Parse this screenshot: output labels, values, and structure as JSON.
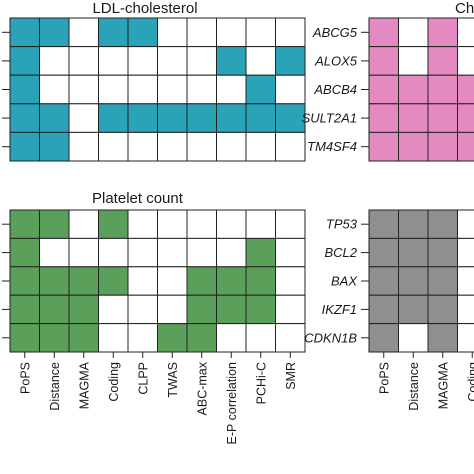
{
  "chart_data": [
    {
      "type": "heatmap",
      "title": "LDL-cholesterol",
      "color": "#2aa3b8",
      "rows": [
        "",
        "",
        "",
        "",
        ""
      ],
      "columns": [
        "PoPS",
        "Distance",
        "MAGMA",
        "Coding",
        "CLPP",
        "TWAS",
        "ABC-max",
        "E-P correlation",
        "PCHi-C",
        "SMR"
      ],
      "matrix": [
        [
          1,
          1,
          0,
          1,
          1,
          0,
          0,
          0,
          0,
          0
        ],
        [
          1,
          0,
          0,
          0,
          0,
          0,
          0,
          1,
          0,
          1
        ],
        [
          1,
          0,
          0,
          0,
          0,
          0,
          0,
          0,
          1,
          0
        ],
        [
          1,
          1,
          0,
          1,
          1,
          1,
          1,
          1,
          1,
          1
        ],
        [
          1,
          1,
          0,
          0,
          0,
          0,
          0,
          0,
          0,
          0
        ]
      ]
    },
    {
      "type": "heatmap",
      "title": "Ch",
      "color": "#e58ac0",
      "rows": [
        "ABCG5",
        "ALOX5",
        "ABCB4",
        "SULT2A1",
        "TM4SF4"
      ],
      "columns": [
        "",
        "",
        "",
        ""
      ],
      "matrix": [
        [
          1,
          0,
          1,
          0
        ],
        [
          1,
          0,
          1,
          0
        ],
        [
          1,
          1,
          1,
          1
        ],
        [
          1,
          1,
          1,
          1
        ],
        [
          1,
          1,
          1,
          1
        ]
      ]
    },
    {
      "type": "heatmap",
      "title": "Platelet count",
      "color": "#5aa05a",
      "rows": [
        "",
        "",
        "",
        "",
        ""
      ],
      "columns": [
        "PoPS",
        "Distance",
        "MAGMA",
        "Coding",
        "CLPP",
        "TWAS",
        "ABC-max",
        "E-P correlation",
        "PCHi-C",
        "SMR"
      ],
      "matrix": [
        [
          1,
          1,
          0,
          1,
          0,
          0,
          0,
          0,
          0,
          0
        ],
        [
          1,
          0,
          0,
          0,
          0,
          0,
          0,
          0,
          1,
          0
        ],
        [
          1,
          1,
          1,
          1,
          0,
          0,
          1,
          1,
          1,
          0
        ],
        [
          1,
          1,
          1,
          0,
          0,
          0,
          1,
          1,
          1,
          0
        ],
        [
          1,
          1,
          1,
          0,
          0,
          1,
          1,
          0,
          0,
          0
        ]
      ]
    },
    {
      "type": "heatmap",
      "title": "",
      "color": "#8f8f8f",
      "rows": [
        "TP53",
        "BCL2",
        "BAX",
        "IKZF1",
        "CDKN1B"
      ],
      "columns": [
        "PoPS",
        "Distance",
        "MAGMA",
        "Coding"
      ],
      "matrix": [
        [
          1,
          1,
          1,
          0
        ],
        [
          1,
          1,
          1,
          0
        ],
        [
          1,
          1,
          1,
          0
        ],
        [
          1,
          1,
          1,
          0
        ],
        [
          1,
          0,
          1,
          0
        ]
      ]
    }
  ]
}
